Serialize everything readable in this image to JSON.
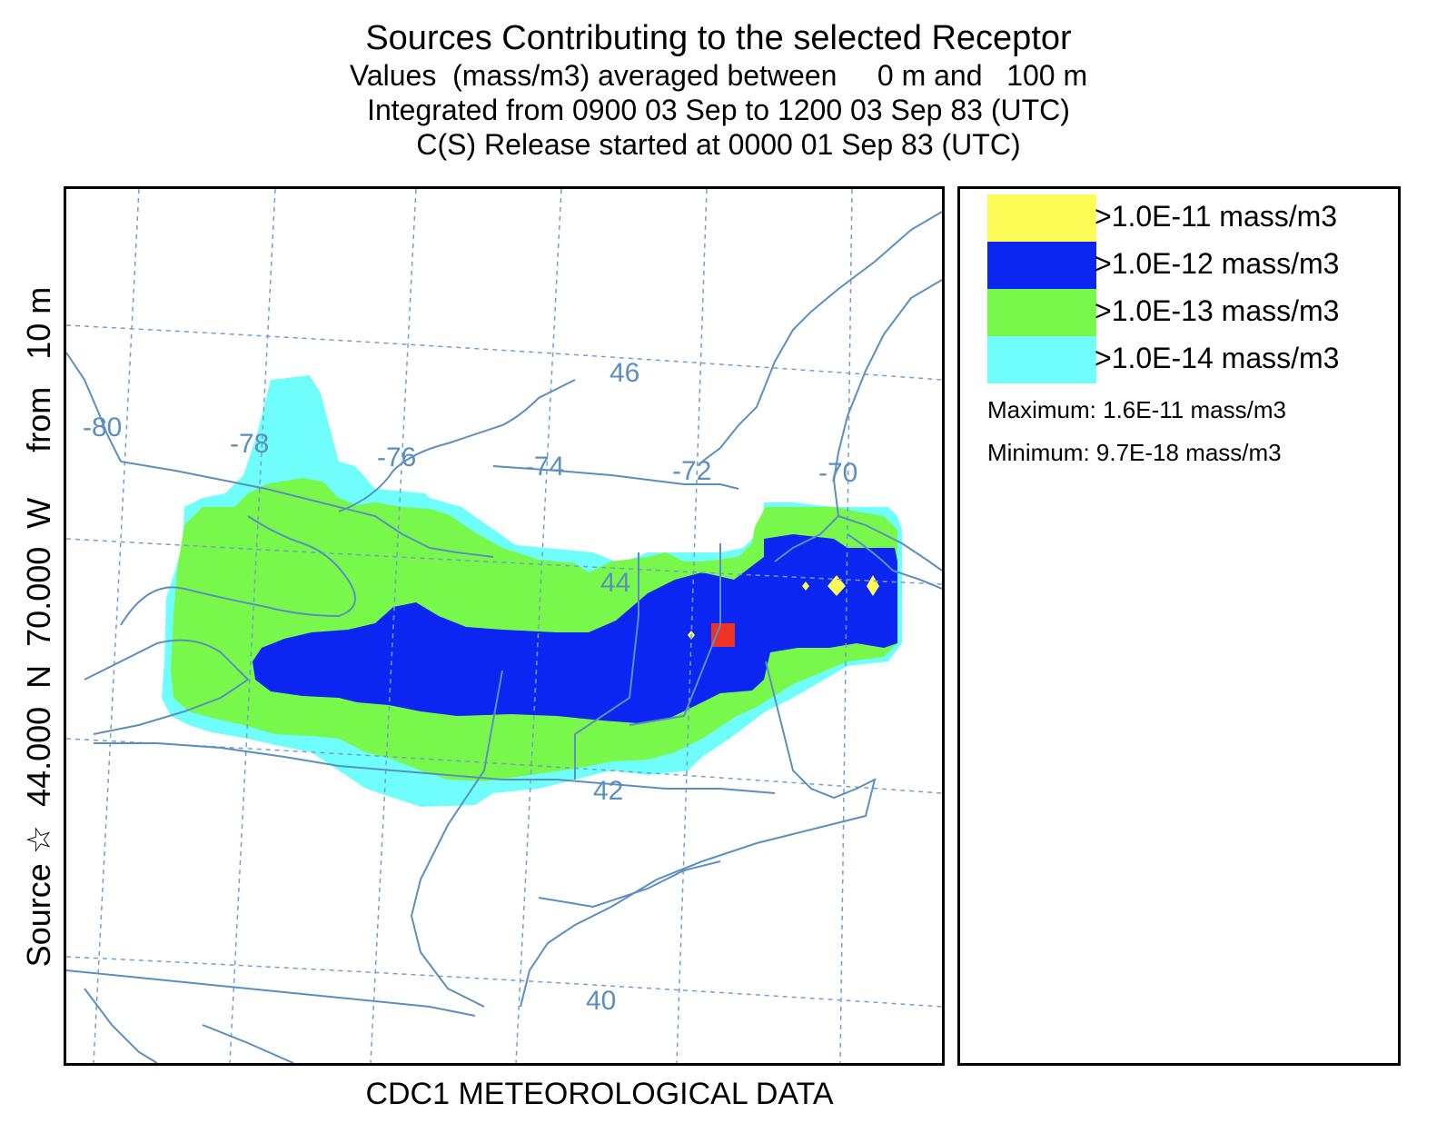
{
  "header": {
    "title": "Sources Contributing to the selected Receptor",
    "line1": "Values  (mass/m3) averaged between     0 m and   100 m",
    "line2": "Integrated from 0900 03 Sep to 1200 03 Sep 83 (UTC)",
    "line3": "C(S) Release started at 0000 01 Sep 83 (UTC)"
  },
  "side_label": "Source ☆  44.000  N  70.000  W     from   10 m",
  "footer": "CDC1 METEOROLOGICAL DATA",
  "map": {
    "longitude_labels": [
      "-80",
      "-78",
      "-76",
      "-74",
      "-72",
      "-70"
    ],
    "latitude_labels": [
      "46",
      "44",
      "42",
      "40"
    ],
    "colors": {
      "boundary": "#5b8fbf",
      "graticule": "#6fa0d0",
      "level_1e-14": "#70fefd",
      "level_1e-13": "#78f84a",
      "level_1e-12": "#0a26f0",
      "level_1e-11": "#fdfb55",
      "source_marker": "#ee3322"
    }
  },
  "legend": {
    "items": [
      {
        "label": ">1.0E-11 mass/m3",
        "color": "#fdfb55"
      },
      {
        "label": ">1.0E-12 mass/m3",
        "color": "#0a26f0"
      },
      {
        "label": ">1.0E-13 mass/m3",
        "color": "#78f84a"
      },
      {
        "label": ">1.0E-14 mass/m3",
        "color": "#70fefd"
      }
    ],
    "maximum": "Maximum: 1.6E-11 mass/m3",
    "minimum": "Minimum: 9.7E-18 mass/m3"
  }
}
